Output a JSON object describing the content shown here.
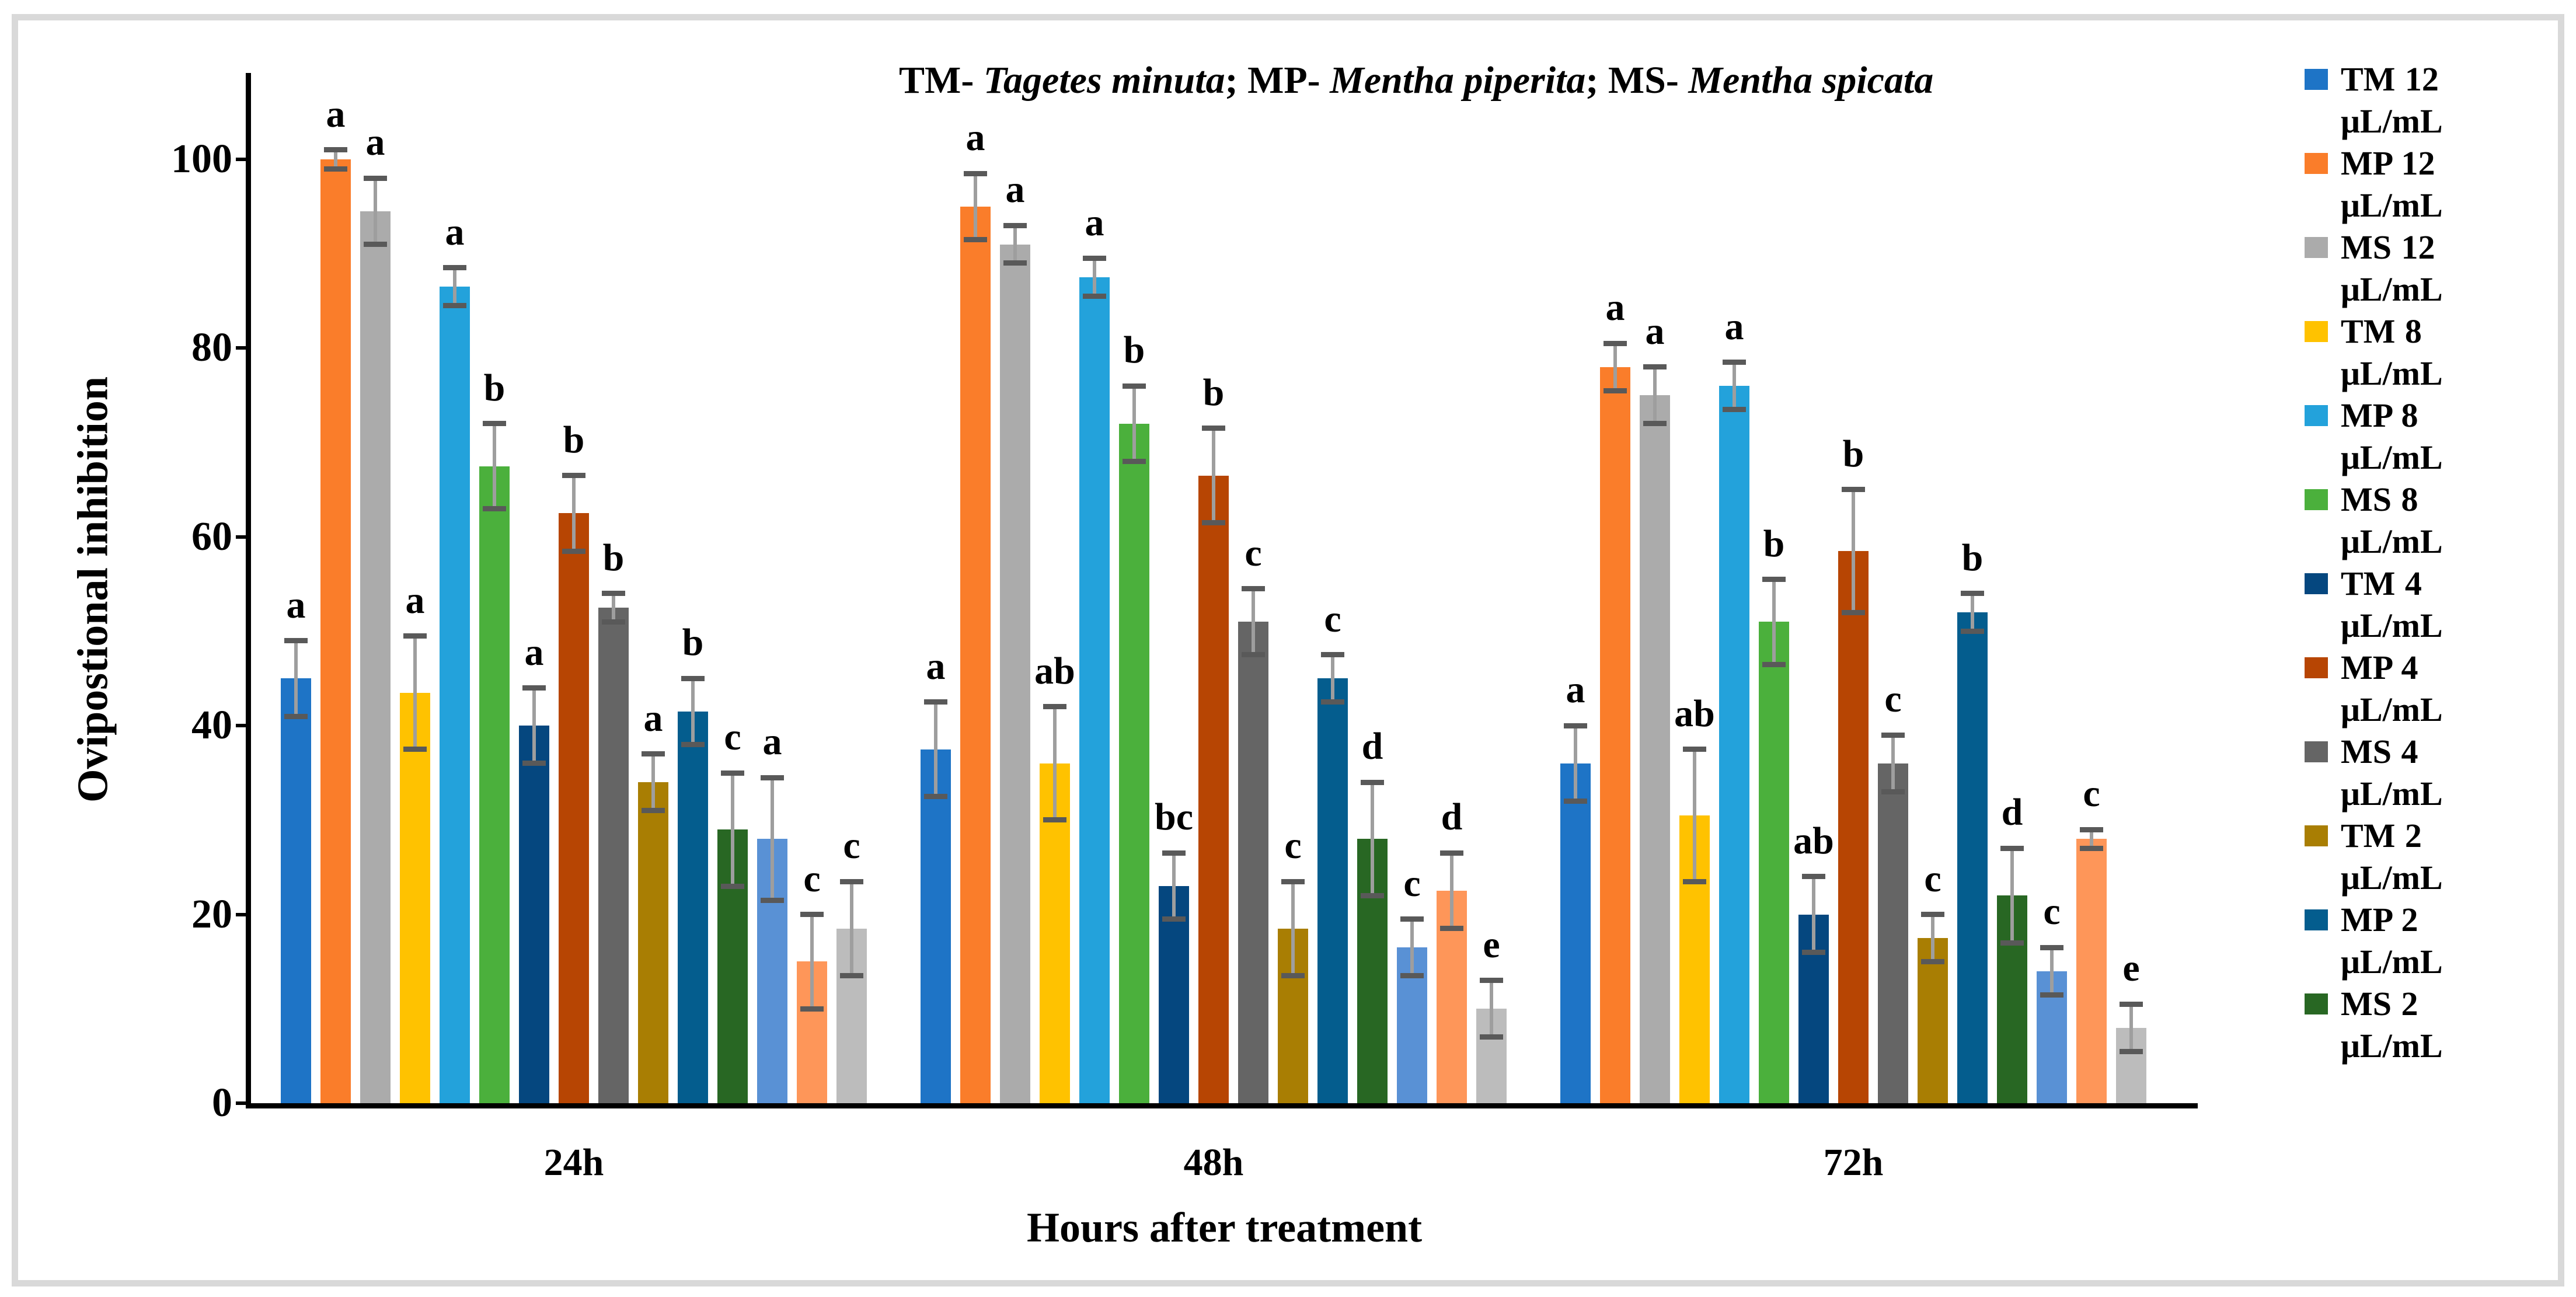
{
  "figure": {
    "border_color": "#D9D9D9",
    "background": "#FFFFFF"
  },
  "title": {
    "seg1": "TM- ",
    "seg2": "Tagetes minuta",
    "seg3": "; MP- ",
    "seg4": "Mentha piperita",
    "seg5": "; MS- ",
    "seg6": "Mentha spicata"
  },
  "chart_data": {
    "type": "bar",
    "title": "TM- Tagetes minuta; MP- Mentha piperita; MS- Mentha spicata",
    "xlabel": "Hours after treatment",
    "ylabel": "Ovipostional inhibition",
    "ylim": [
      0,
      110
    ],
    "yticks": [
      0,
      20,
      40,
      60,
      80,
      100
    ],
    "grid": false,
    "legend_position": "right",
    "error_bars": true,
    "error_line_color": "#9E9E9E",
    "error_cap_color": "#595959",
    "categories": [
      "24h",
      "48h",
      "72h"
    ],
    "series": [
      {
        "id": "tm12",
        "name": "TM 12 μL/mL",
        "color": "#1E74C6",
        "in_legend": true,
        "values": [
          45,
          37.5,
          36
        ],
        "errors": [
          4,
          5,
          4
        ],
        "letters": [
          "a",
          "a",
          "a"
        ]
      },
      {
        "id": "mp12",
        "name": "MP 12 μL/mL",
        "color": "#FA7D2A",
        "in_legend": true,
        "values": [
          100,
          95,
          78
        ],
        "errors": [
          1,
          3.5,
          2.5
        ],
        "letters": [
          "a",
          "a",
          "a"
        ]
      },
      {
        "id": "ms12",
        "name": "MS 12 μL/mL",
        "color": "#ABABAB",
        "in_legend": true,
        "values": [
          94.5,
          91,
          75
        ],
        "errors": [
          3.5,
          2,
          3
        ],
        "letters": [
          "a",
          "a",
          "a"
        ]
      },
      {
        "id": "tm8",
        "name": "TM 8 μL/mL",
        "color": "#FFC200",
        "in_legend": true,
        "values": [
          43.5,
          36,
          30.5
        ],
        "errors": [
          6,
          6,
          7
        ],
        "letters": [
          "a",
          "ab",
          "ab"
        ]
      },
      {
        "id": "mp8",
        "name": "MP 8 μL/mL",
        "color": "#23A2DB",
        "in_legend": true,
        "values": [
          86.5,
          87.5,
          76
        ],
        "errors": [
          2,
          2,
          2.5
        ],
        "letters": [
          "a",
          "a",
          "a"
        ]
      },
      {
        "id": "ms8",
        "name": "MS 8 μL/mL",
        "color": "#4BB03C",
        "in_legend": true,
        "values": [
          67.5,
          72,
          51
        ],
        "errors": [
          4.5,
          4,
          4.5
        ],
        "letters": [
          "b",
          "b",
          "b"
        ]
      },
      {
        "id": "tm4",
        "name": "TM 4 μL/mL",
        "color": "#05477F",
        "in_legend": true,
        "values": [
          40,
          23,
          20
        ],
        "errors": [
          4,
          3.5,
          4
        ],
        "letters": [
          "a",
          "bc",
          "ab"
        ]
      },
      {
        "id": "mp4",
        "name": "MP 4 μL/mL",
        "color": "#B74503",
        "in_legend": true,
        "values": [
          62.5,
          66.5,
          58.5
        ],
        "errors": [
          4,
          5,
          6.5
        ],
        "letters": [
          "b",
          "b",
          "b"
        ]
      },
      {
        "id": "ms4",
        "name": "MS 4 μL/mL",
        "color": "#656565",
        "in_legend": true,
        "values": [
          52.5,
          51,
          36
        ],
        "errors": [
          1.5,
          3.5,
          3
        ],
        "letters": [
          "b",
          "c",
          "c"
        ]
      },
      {
        "id": "tm2",
        "name": "TM 2 μL/mL",
        "color": "#A97E03",
        "in_legend": true,
        "values": [
          34,
          18.5,
          17.5
        ],
        "errors": [
          3,
          5,
          2.5
        ],
        "letters": [
          "a",
          "c",
          "c"
        ]
      },
      {
        "id": "mp2",
        "name": "MP 2 μL/mL",
        "color": "#045D8E",
        "in_legend": true,
        "values": [
          41.5,
          45,
          52
        ],
        "errors": [
          3.5,
          2.5,
          2
        ],
        "letters": [
          "b",
          "c",
          "b"
        ]
      },
      {
        "id": "ms2",
        "name": "MS 2 μL/mL",
        "color": "#286723",
        "in_legend": true,
        "values": [
          29,
          28,
          22
        ],
        "errors": [
          6,
          6,
          5
        ],
        "letters": [
          "c",
          "d",
          "d"
        ]
      },
      {
        "id": "extra-light-blue",
        "name": "",
        "color": "#5991D5",
        "in_legend": false,
        "values": [
          28,
          16.5,
          14
        ],
        "errors": [
          6.5,
          3,
          2.5
        ],
        "letters": [
          "a",
          "c",
          "c"
        ]
      },
      {
        "id": "extra-light-orange",
        "name": "",
        "color": "#FE9659",
        "in_legend": false,
        "values": [
          15,
          22.5,
          28
        ],
        "errors": [
          5,
          4,
          1
        ],
        "letters": [
          "c",
          "d",
          "c"
        ]
      },
      {
        "id": "extra-light-gray",
        "name": "",
        "color": "#BCBCBC",
        "in_legend": false,
        "values": [
          18.5,
          10,
          8
        ],
        "errors": [
          5,
          3,
          2.5
        ],
        "letters": [
          "c",
          "e",
          "e"
        ]
      }
    ]
  }
}
